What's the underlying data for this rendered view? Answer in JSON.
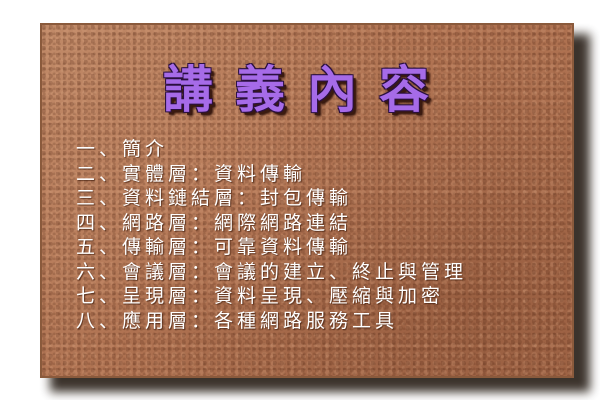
{
  "title": "講義內容",
  "items": [
    {
      "label": "一、簡介"
    },
    {
      "label": "二、實體層：資料傳輸"
    },
    {
      "label": "三、資料鏈結層：封包傳輸"
    },
    {
      "label": "四、網路層：網際網路連結"
    },
    {
      "label": "五、傳輸層：可靠資料傳輸"
    },
    {
      "label": "六、會議層：會議的建立、終止與管理"
    },
    {
      "label": "七、呈現層：資料呈現、壓縮與加密"
    },
    {
      "label": "八、應用層：各種網路服務工具"
    }
  ],
  "colors": {
    "board": "#b47a58",
    "title": "#a66be8",
    "text": "#ffffff"
  }
}
